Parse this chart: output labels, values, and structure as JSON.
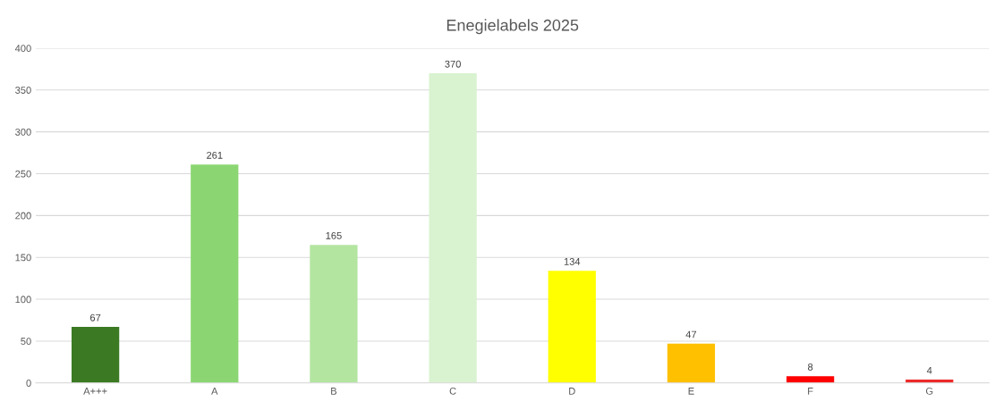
{
  "chart_data": {
    "type": "bar",
    "title": "Enegielabels 2025",
    "categories": [
      "A+++",
      "A",
      "B",
      "C",
      "D",
      "E",
      "F",
      "G"
    ],
    "values": [
      67,
      261,
      165,
      370,
      134,
      47,
      8,
      4
    ],
    "colors": [
      "#3b7a22",
      "#8bd672",
      "#b3e5a1",
      "#d9f2d0",
      "#ffff00",
      "#ffc000",
      "#ff0000",
      "#ee2a2a"
    ],
    "ylim": [
      0,
      400
    ],
    "yticks": [
      0,
      50,
      100,
      150,
      200,
      250,
      300,
      350,
      400
    ],
    "grid": "y",
    "data_labels": true
  }
}
